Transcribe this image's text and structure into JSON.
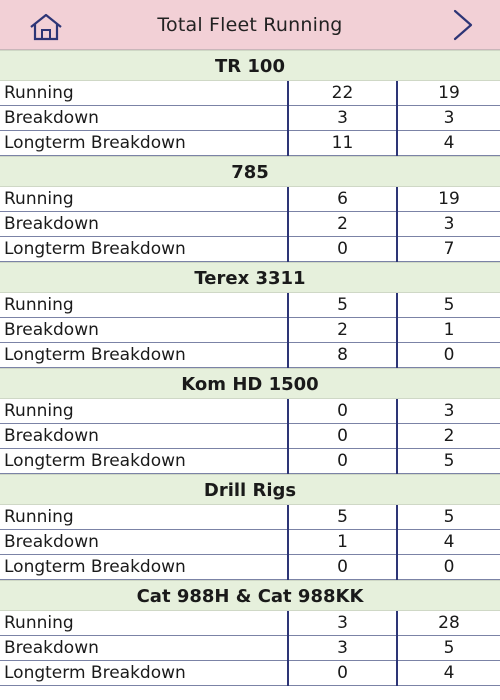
{
  "header": {
    "title": "Total Fleet Running"
  },
  "groups": [
    {
      "name": "TR 100",
      "rows": [
        {
          "label": "Running",
          "a": "22",
          "b": "19"
        },
        {
          "label": "Breakdown",
          "a": "3",
          "b": "3"
        },
        {
          "label": "Longterm Breakdown",
          "a": "11",
          "b": "4"
        }
      ]
    },
    {
      "name": "785",
      "rows": [
        {
          "label": "Running",
          "a": "6",
          "b": "19"
        },
        {
          "label": "Breakdown",
          "a": "2",
          "b": "3"
        },
        {
          "label": "Longterm Breakdown",
          "a": "0",
          "b": "7"
        }
      ]
    },
    {
      "name": "Terex 3311",
      "rows": [
        {
          "label": "Running",
          "a": "5",
          "b": "5"
        },
        {
          "label": "Breakdown",
          "a": "2",
          "b": "1"
        },
        {
          "label": "Longterm Breakdown",
          "a": "8",
          "b": "0"
        }
      ]
    },
    {
      "name": "Kom HD 1500",
      "rows": [
        {
          "label": "Running",
          "a": "0",
          "b": "3"
        },
        {
          "label": "Breakdown",
          "a": "0",
          "b": "2"
        },
        {
          "label": "Longterm Breakdown",
          "a": "0",
          "b": "5"
        }
      ]
    },
    {
      "name": "Drill Rigs",
      "rows": [
        {
          "label": "Running",
          "a": "5",
          "b": "5"
        },
        {
          "label": "Breakdown",
          "a": "1",
          "b": "4"
        },
        {
          "label": "Longterm Breakdown",
          "a": "0",
          "b": "0"
        }
      ]
    },
    {
      "name": "Cat 988H & Cat 988KK",
      "rows": [
        {
          "label": "Running",
          "a": "3",
          "b": "28"
        },
        {
          "label": "Breakdown",
          "a": "3",
          "b": "5"
        },
        {
          "label": "Longterm Breakdown",
          "a": "0",
          "b": "4"
        }
      ]
    }
  ]
}
